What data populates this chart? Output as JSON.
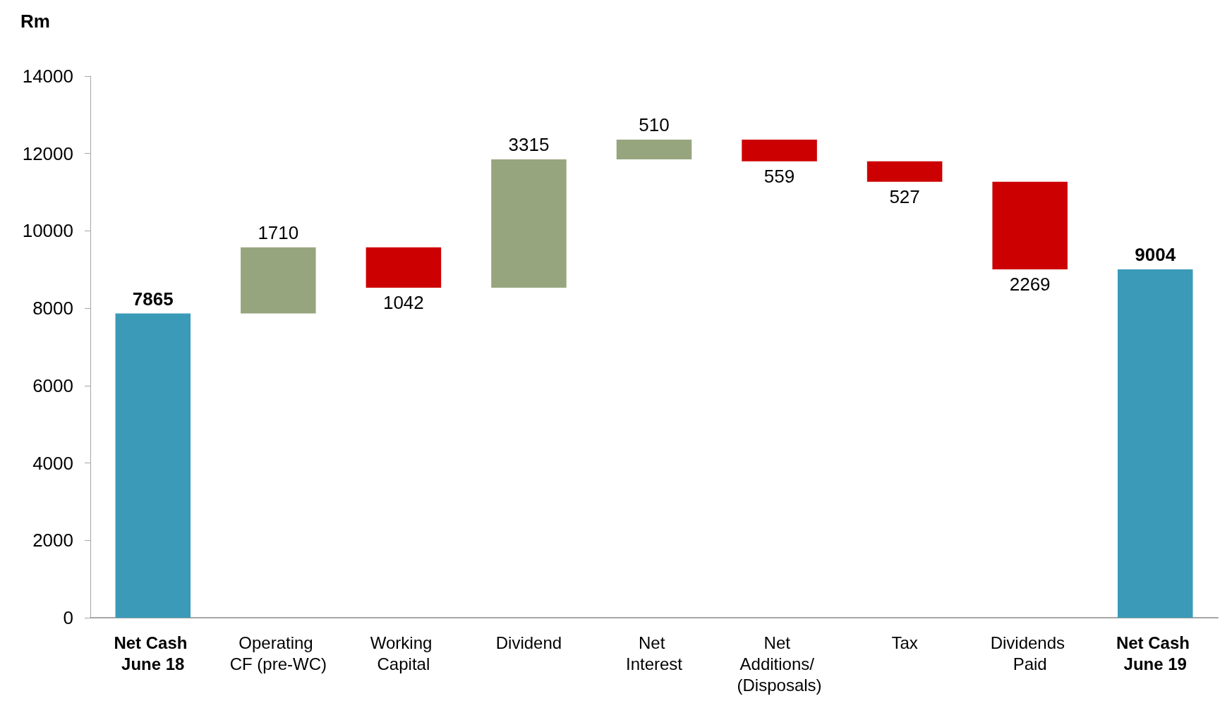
{
  "chart_data": {
    "type": "bar",
    "ylabel": "Rm",
    "categories": [
      "Net Cash June 18",
      "Operating CF (pre-WC)",
      "Working Capital",
      "Dividend",
      "Net Interest",
      "Net Additions/ (Disposals)",
      "Tax",
      "Dividends Paid",
      "Net Cash June 19"
    ],
    "values": [
      7865,
      1710,
      -1042,
      3315,
      510,
      -559,
      -527,
      -2269,
      9004
    ],
    "base": [
      0,
      7865,
      9575,
      8533,
      11848,
      12358,
      11799,
      11272,
      0
    ],
    "colors": [
      "#3a9ab8",
      "#97a57e",
      "#cc0000",
      "#97a57e",
      "#97a57e",
      "#cc0000",
      "#cc0000",
      "#cc0000",
      "#3a9ab8"
    ],
    "value_labels": [
      "7865",
      "1710",
      "1042",
      "3315",
      "510",
      "559",
      "527",
      "2269",
      "9004"
    ],
    "ylim": [
      0,
      14000
    ],
    "yticks": [
      0,
      2000,
      4000,
      6000,
      8000,
      10000,
      12000,
      14000
    ]
  }
}
